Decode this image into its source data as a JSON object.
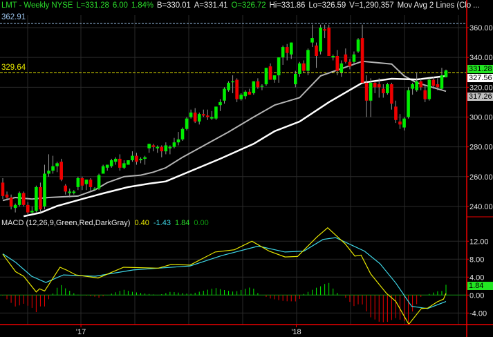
{
  "header": {
    "symbol_line": "LMT - Weekly  NYSE",
    "last": "L=331.28",
    "change": "6.00",
    "change_pct": "1.84%",
    "bid": "B=330.01",
    "ask": "A=331.41",
    "open": "O=326.72",
    "high": "Hi=331.86",
    "low": "Lo=326.59",
    "volume": "V=1,290,357",
    "overlay": "Mov Avg 2 Lines (Clo ..."
  },
  "reference_lines": {
    "high_label": "362.91",
    "high_value": 362.91,
    "high_color": "#9cc4ec",
    "level_label": "329.64",
    "level_value": 329.64,
    "level_color": "#e8e800"
  },
  "price_tags": [
    {
      "label": "331.28",
      "value": 331.28,
      "bg": "#22e622",
      "fg": "#000000"
    },
    {
      "label": "327.56",
      "value": 327.56,
      "bg": "#ffffff",
      "fg": "#000000"
    },
    {
      "label": "317.26",
      "value": 317.26,
      "bg": "#c0c0c0",
      "fg": "#000000"
    }
  ],
  "macd": {
    "title": "MACD (12,26,9,Green,Red,DarkGray)",
    "macd_value": "0.40",
    "signal_value": "-1.43",
    "hist_value": "1.84",
    "zero_value": "0.00",
    "hist_tag": "1.84"
  },
  "colors": {
    "up": "#00ee00",
    "down": "#ee0000",
    "ma_fast": "#b4b4b4",
    "ma_slow": "#ffffff",
    "macd": "#e8e800",
    "signal": "#3fd8e8",
    "axis": "#ee0000",
    "grid": "#2a2a2a"
  },
  "chart_data": [
    {
      "type": "candlestick",
      "title": "LMT - Weekly NYSE",
      "ylim": [
        232,
        366
      ],
      "yticks": [
        "360.00",
        "340.00",
        "320.00",
        "300.00",
        "280.00",
        "260.00",
        "240.00"
      ],
      "ytick_values": [
        360,
        340,
        320,
        300,
        280,
        260,
        240
      ],
      "xtick_labels": [
        "'17",
        "'18"
      ],
      "xtick_index": [
        18.7,
        70.2
      ],
      "grid": true,
      "candles_ohlc": [
        [
          256,
          259,
          245,
          247
        ],
        [
          248,
          250,
          244,
          246
        ],
        [
          246,
          248,
          238,
          240
        ],
        [
          239,
          242,
          236,
          241
        ],
        [
          241,
          250,
          240,
          249
        ],
        [
          249,
          250,
          240,
          241
        ],
        [
          241,
          243,
          234,
          236
        ],
        [
          236,
          240,
          235,
          237
        ],
        [
          237,
          254,
          236,
          253
        ],
        [
          253,
          256,
          236,
          238
        ],
        [
          240,
          268,
          238,
          262
        ],
        [
          262,
          275,
          260,
          264
        ],
        [
          264,
          274,
          262,
          267
        ],
        [
          267,
          270,
          263,
          269
        ],
        [
          270,
          272,
          257,
          258
        ],
        [
          254,
          255,
          248,
          250
        ],
        [
          249,
          252,
          246,
          250
        ],
        [
          249,
          251,
          248,
          250
        ],
        [
          253,
          260,
          251,
          259
        ],
        [
          259,
          260,
          251,
          254
        ],
        [
          255,
          258,
          251,
          258
        ],
        [
          258,
          259,
          250,
          253
        ],
        [
          252,
          253,
          251,
          252
        ],
        [
          252,
          262,
          251,
          261
        ],
        [
          262,
          268,
          262,
          267
        ],
        [
          266,
          268,
          264,
          268
        ],
        [
          267,
          272,
          266,
          271
        ],
        [
          270,
          273,
          268,
          272
        ],
        [
          272,
          275,
          264,
          266
        ],
        [
          266,
          271,
          265,
          269
        ],
        [
          268,
          271,
          268,
          271
        ],
        [
          271,
          277,
          270,
          274
        ],
        [
          274,
          276,
          268,
          270
        ],
        [
          271,
          273,
          269,
          272
        ],
        [
          272,
          274,
          268,
          273
        ],
        [
          279,
          282,
          276,
          282
        ],
        [
          281,
          282,
          277,
          280
        ],
        [
          279,
          281,
          276,
          280
        ],
        [
          280,
          281,
          273,
          277
        ],
        [
          277,
          283,
          275,
          281
        ],
        [
          279,
          281,
          275,
          280
        ],
        [
          280,
          286,
          279,
          283
        ],
        [
          283,
          290,
          281,
          285
        ],
        [
          285,
          293,
          284,
          292
        ],
        [
          292,
          300,
          291,
          299
        ],
        [
          300,
          305,
          299,
          303
        ],
        [
          303,
          306,
          296,
          297
        ],
        [
          297,
          303,
          295,
          302
        ],
        [
          302,
          305,
          300,
          301
        ],
        [
          301,
          305,
          298,
          300
        ],
        [
          299,
          304,
          298,
          300
        ],
        [
          299,
          307,
          298,
          307
        ],
        [
          308,
          312,
          304,
          310
        ],
        [
          311,
          320,
          309,
          319
        ],
        [
          318,
          324,
          317,
          323
        ],
        [
          324,
          328,
          316,
          324
        ],
        [
          325,
          326,
          310,
          312
        ],
        [
          312,
          316,
          311,
          315
        ],
        [
          314,
          318,
          312,
          317
        ],
        [
          317,
          319,
          315,
          315
        ],
        [
          316,
          324,
          315,
          324
        ],
        [
          324,
          326,
          319,
          320
        ],
        [
          321,
          322,
          318,
          321
        ],
        [
          322,
          333,
          321,
          333
        ],
        [
          334,
          336,
          325,
          325
        ],
        [
          325,
          328,
          323,
          328
        ],
        [
          328,
          340,
          323,
          340
        ],
        [
          340,
          348,
          335,
          347
        ],
        [
          347,
          349,
          338,
          343
        ],
        [
          342,
          350,
          339,
          350
        ],
        [
          322,
          331,
          320,
          329
        ],
        [
          329,
          337,
          327,
          336
        ],
        [
          336,
          338,
          330,
          331
        ],
        [
          331,
          346,
          328,
          345
        ],
        [
          350,
          362,
          347,
          353
        ],
        [
          348,
          350,
          333,
          341
        ],
        [
          344,
          362,
          342,
          360
        ],
        [
          359,
          362,
          353,
          358
        ],
        [
          360,
          362,
          345,
          341
        ],
        [
          340,
          342,
          338,
          341
        ],
        [
          341,
          345,
          328,
          331
        ],
        [
          330,
          338,
          327,
          336
        ],
        [
          342,
          346,
          336,
          337
        ],
        [
          337,
          339,
          332,
          334
        ],
        [
          337,
          344,
          335,
          342
        ],
        [
          344,
          353,
          343,
          352
        ],
        [
          353,
          362,
          332,
          323
        ],
        [
          323,
          328,
          300,
          311
        ],
        [
          311,
          326,
          300,
          323
        ],
        [
          323,
          324,
          316,
          320
        ],
        [
          322,
          326,
          313,
          320
        ],
        [
          319,
          322,
          313,
          316
        ],
        [
          316,
          323,
          315,
          322
        ],
        [
          322,
          323,
          305,
          309
        ],
        [
          307,
          311,
          296,
          298
        ],
        [
          297,
          302,
          292,
          295
        ],
        [
          293,
          300,
          291,
          299
        ],
        [
          300,
          320,
          299,
          318
        ],
        [
          319,
          323,
          315,
          322
        ],
        [
          318,
          330,
          317,
          324
        ],
        [
          324,
          326,
          318,
          320
        ],
        [
          318,
          321,
          310,
          312
        ],
        [
          312,
          326,
          311,
          325
        ],
        [
          325,
          327,
          319,
          321
        ],
        [
          322,
          326,
          318,
          320
        ],
        [
          319,
          333,
          318,
          328
        ],
        [
          326.72,
          331.86,
          326.59,
          331.28
        ]
      ],
      "moving_averages": [
        {
          "points": [
            [
              0,
              244
            ],
            [
              3,
              246
            ],
            [
              7,
              245
            ],
            [
              11,
              246
            ],
            [
              18,
              247
            ],
            [
              22,
              251
            ],
            [
              25,
              256
            ],
            [
              29,
              260
            ],
            [
              33,
              261
            ],
            [
              36,
              263
            ],
            [
              39,
              266
            ],
            [
              43,
              273
            ],
            [
              54,
              290
            ],
            [
              60,
              300
            ],
            [
              65,
              308
            ],
            [
              71,
              313
            ],
            [
              76,
              327.6
            ],
            [
              86,
              337.4
            ],
            [
              93,
              335.6
            ],
            [
              96,
              327.6
            ],
            [
              99,
              323
            ],
            [
              106,
              317.26
            ]
          ]
        },
        {
          "points": [
            [
              5,
              233.4
            ],
            [
              9,
              235.8
            ],
            [
              13,
              240.3
            ],
            [
              19,
              245
            ],
            [
              24,
              248.8
            ],
            [
              30,
              253
            ],
            [
              35,
              255.3
            ],
            [
              39,
              256.8
            ],
            [
              52,
              272
            ],
            [
              60,
              282
            ],
            [
              65,
              290.5
            ],
            [
              71,
              297
            ],
            [
              78,
              310
            ],
            [
              86,
              323
            ],
            [
              93,
              325.7
            ],
            [
              99,
              325.2
            ],
            [
              106,
              327.56
            ]
          ]
        }
      ]
    },
    {
      "type": "line",
      "title": "MACD (12,26,9,Green,Red,DarkGray)",
      "ylim": [
        -6.8,
        17
      ],
      "yticks": [
        "12.00",
        "8.00",
        "4.00",
        "0.00",
        "-4.00"
      ],
      "ytick_values": [
        12,
        8,
        4,
        0,
        -4
      ],
      "series": [
        {
          "points": [
            [
              0,
              9.1
            ],
            [
              3.1,
              5.2
            ],
            [
              5,
              4.2
            ],
            [
              8,
              0.7
            ],
            [
              8.8,
              1.4
            ],
            [
              10,
              0.9
            ],
            [
              13.7,
              6.2
            ],
            [
              15.2,
              5.6
            ],
            [
              17.5,
              4.5
            ],
            [
              22.8,
              3.8
            ],
            [
              28.9,
              6.2
            ],
            [
              37.2,
              6.0
            ],
            [
              40.2,
              6.8
            ],
            [
              44.8,
              6.7
            ],
            [
              50.8,
              9.6
            ],
            [
              55.4,
              10.1
            ],
            [
              59.6,
              12.0
            ],
            [
              63.7,
              9.8
            ],
            [
              67.5,
              8.5
            ],
            [
              70.5,
              8.6
            ],
            [
              75.1,
              12.9
            ],
            [
              77.7,
              15.0
            ],
            [
              81.9,
              11.4
            ],
            [
              84.2,
              8.7
            ],
            [
              85.7,
              8.9
            ],
            [
              88,
              4.7
            ],
            [
              91.8,
              0.35
            ],
            [
              94,
              -1.4
            ],
            [
              97.1,
              -6.5
            ],
            [
              100.1,
              -3.0
            ],
            [
              101.6,
              -2.9
            ],
            [
              103.9,
              -1.5
            ],
            [
              105.4,
              -0.9
            ],
            [
              106,
              0.4
            ]
          ]
        },
        {
          "points": [
            [
              0,
              9.2
            ],
            [
              3.1,
              7.3
            ],
            [
              6.9,
              4.2
            ],
            [
              10.3,
              2.8
            ],
            [
              14.5,
              4.5
            ],
            [
              22.1,
              4.2
            ],
            [
              31.2,
              5.6
            ],
            [
              37.2,
              6.0
            ],
            [
              44.8,
              6.5
            ],
            [
              52.4,
              8.8
            ],
            [
              61.1,
              10.9
            ],
            [
              67.5,
              9.6
            ],
            [
              72,
              9.8
            ],
            [
              76.6,
              12.4
            ],
            [
              79.6,
              12.8
            ],
            [
              86.5,
              9.8
            ],
            [
              90.2,
              7.0
            ],
            [
              94,
              2.7
            ],
            [
              97.8,
              -2.5
            ],
            [
              101.6,
              -3.0
            ],
            [
              106,
              -1.43
            ]
          ]
        }
      ],
      "histogram": "macd minus signal"
    }
  ]
}
